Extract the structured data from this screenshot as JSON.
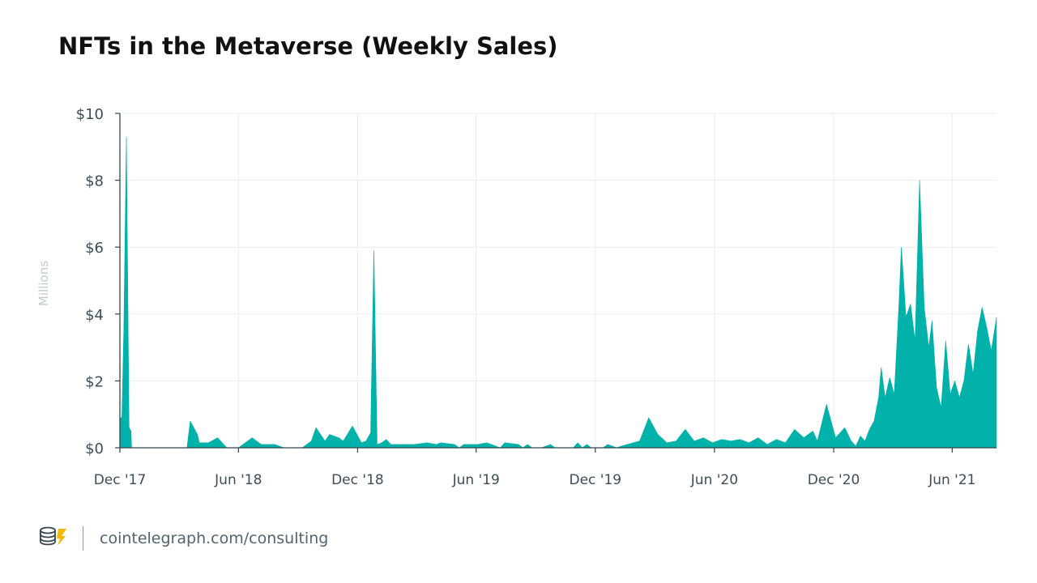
{
  "chart_data": {
    "type": "area",
    "title": "NFTs in the Metaverse (Weekly Sales)",
    "ylabel": "Millions",
    "ylim": [
      0,
      10
    ],
    "y_ticks": [
      0,
      2,
      4,
      6,
      8,
      10
    ],
    "y_tick_labels": [
      "$0",
      "$2",
      "$4",
      "$6",
      "$8",
      "$10"
    ],
    "x_ticks": [
      "2017-12-01",
      "2018-06-01",
      "2018-12-01",
      "2019-06-01",
      "2019-12-01",
      "2020-06-01",
      "2020-12-01",
      "2021-06-01"
    ],
    "x_tick_labels": [
      "Dec '17",
      "Jun '18",
      "Dec '18",
      "Jun '19",
      "Dec '19",
      "Jun '20",
      "Dec '20",
      "Jun '21"
    ],
    "xlim": [
      "2017-12-01",
      "2021-08-08"
    ],
    "grid": true,
    "color": "#00b2a9",
    "series": [
      {
        "points": [
          [
            "2017-12-01",
            0.9
          ],
          [
            "2017-12-04",
            0.9
          ],
          [
            "2017-12-07",
            3.5
          ],
          [
            "2017-12-11",
            9.3
          ],
          [
            "2017-12-15",
            0.6
          ],
          [
            "2017-12-18",
            0.5
          ],
          [
            "2017-12-19",
            0
          ],
          [
            "2018-03-14",
            0
          ],
          [
            "2018-03-19",
            0.8
          ],
          [
            "2018-03-30",
            0.4
          ],
          [
            "2018-04-02",
            0.15
          ],
          [
            "2018-04-16",
            0.15
          ],
          [
            "2018-04-30",
            0.3
          ],
          [
            "2018-05-14",
            0
          ],
          [
            "2018-06-01",
            0
          ],
          [
            "2018-06-22",
            0.3
          ],
          [
            "2018-07-06",
            0.1
          ],
          [
            "2018-07-27",
            0.1
          ],
          [
            "2018-08-10",
            0
          ],
          [
            "2018-09-07",
            0
          ],
          [
            "2018-09-21",
            0.2
          ],
          [
            "2018-09-28",
            0.6
          ],
          [
            "2018-10-12",
            0.2
          ],
          [
            "2018-10-19",
            0.4
          ],
          [
            "2018-11-02",
            0.3
          ],
          [
            "2018-11-09",
            0.2
          ],
          [
            "2018-11-23",
            0.65
          ],
          [
            "2018-12-07",
            0.15
          ],
          [
            "2018-12-14",
            0.2
          ],
          [
            "2018-12-21",
            0.45
          ],
          [
            "2018-12-26",
            5.9
          ],
          [
            "2018-12-31",
            0.1
          ],
          [
            "2019-01-07",
            0.15
          ],
          [
            "2019-01-14",
            0.25
          ],
          [
            "2019-01-21",
            0.1
          ],
          [
            "2019-02-25",
            0.1
          ],
          [
            "2019-03-18",
            0.15
          ],
          [
            "2019-04-01",
            0.1
          ],
          [
            "2019-04-08",
            0.15
          ],
          [
            "2019-04-29",
            0.1
          ],
          [
            "2019-05-06",
            0
          ],
          [
            "2019-05-13",
            0.1
          ],
          [
            "2019-06-03",
            0.1
          ],
          [
            "2019-06-17",
            0.15
          ],
          [
            "2019-07-01",
            0.05
          ],
          [
            "2019-07-08",
            0
          ],
          [
            "2019-07-15",
            0.15
          ],
          [
            "2019-08-05",
            0.1
          ],
          [
            "2019-08-12",
            0
          ],
          [
            "2019-08-19",
            0.1
          ],
          [
            "2019-08-26",
            0
          ],
          [
            "2019-09-09",
            0
          ],
          [
            "2019-09-23",
            0.1
          ],
          [
            "2019-09-30",
            0
          ],
          [
            "2019-10-28",
            0
          ],
          [
            "2019-11-04",
            0.15
          ],
          [
            "2019-11-11",
            0
          ],
          [
            "2019-11-18",
            0.1
          ],
          [
            "2019-11-25",
            0
          ],
          [
            "2019-12-13",
            0
          ],
          [
            "2019-12-20",
            0.1
          ],
          [
            "2019-12-27",
            0.05
          ],
          [
            "2020-01-03",
            0
          ],
          [
            "2020-01-10",
            0.05
          ],
          [
            "2020-02-07",
            0.2
          ],
          [
            "2020-02-21",
            0.9
          ],
          [
            "2020-03-06",
            0.4
          ],
          [
            "2020-03-20",
            0.15
          ],
          [
            "2020-04-03",
            0.2
          ],
          [
            "2020-04-17",
            0.55
          ],
          [
            "2020-05-01",
            0.2
          ],
          [
            "2020-05-15",
            0.3
          ],
          [
            "2020-05-29",
            0.15
          ],
          [
            "2020-06-12",
            0.25
          ],
          [
            "2020-06-26",
            0.2
          ],
          [
            "2020-07-10",
            0.25
          ],
          [
            "2020-07-24",
            0.15
          ],
          [
            "2020-08-07",
            0.3
          ],
          [
            "2020-08-21",
            0.1
          ],
          [
            "2020-09-04",
            0.25
          ],
          [
            "2020-09-18",
            0.15
          ],
          [
            "2020-10-02",
            0.55
          ],
          [
            "2020-10-16",
            0.3
          ],
          [
            "2020-10-30",
            0.5
          ],
          [
            "2020-11-06",
            0.2
          ],
          [
            "2020-11-20",
            1.3
          ],
          [
            "2020-12-04",
            0.3
          ],
          [
            "2020-12-18",
            0.6
          ],
          [
            "2020-12-28",
            0.2
          ],
          [
            "2021-01-04",
            0.05
          ],
          [
            "2021-01-11",
            0.35
          ],
          [
            "2021-01-18",
            0.2
          ],
          [
            "2021-01-25",
            0.55
          ],
          [
            "2021-02-01",
            0.8
          ],
          [
            "2021-02-08",
            1.5
          ],
          [
            "2021-02-12",
            2.4
          ],
          [
            "2021-02-18",
            1.5
          ],
          [
            "2021-02-25",
            2.1
          ],
          [
            "2021-03-04",
            1.6
          ],
          [
            "2021-03-11",
            4.2
          ],
          [
            "2021-03-15",
            6.0
          ],
          [
            "2021-03-22",
            3.9
          ],
          [
            "2021-03-29",
            4.3
          ],
          [
            "2021-04-05",
            3.2
          ],
          [
            "2021-04-12",
            8.0
          ],
          [
            "2021-04-19",
            4.2
          ],
          [
            "2021-04-26",
            3.0
          ],
          [
            "2021-05-01",
            3.8
          ],
          [
            "2021-05-08",
            1.8
          ],
          [
            "2021-05-15",
            1.2
          ],
          [
            "2021-05-22",
            3.2
          ],
          [
            "2021-05-29",
            1.6
          ],
          [
            "2021-06-05",
            2.0
          ],
          [
            "2021-06-12",
            1.5
          ],
          [
            "2021-06-19",
            2.0
          ],
          [
            "2021-06-26",
            3.1
          ],
          [
            "2021-07-03",
            2.2
          ],
          [
            "2021-07-10",
            3.5
          ],
          [
            "2021-07-17",
            4.2
          ],
          [
            "2021-07-24",
            3.6
          ],
          [
            "2021-07-31",
            2.9
          ],
          [
            "2021-08-08",
            3.9
          ]
        ]
      }
    ]
  },
  "footer": {
    "logo_icon": "cointelegraph-coin-logo",
    "source_text": "cointelegraph.com/consulting"
  }
}
